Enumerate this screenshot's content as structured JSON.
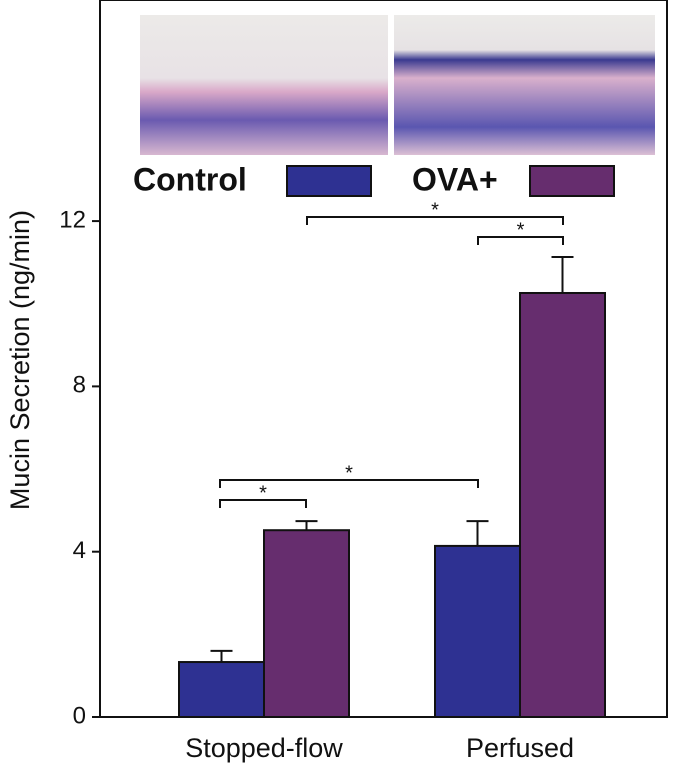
{
  "chart_data": {
    "type": "bar",
    "y_label": "Mucin Secretion (ng/min)",
    "categories": [
      "Stopped-flow",
      "Perfused"
    ],
    "series": [
      {
        "name": "Control",
        "color": "#2e3192",
        "values": [
          1.33,
          4.14
        ],
        "errors": [
          0.27,
          0.6
        ]
      },
      {
        "name": "OVA+",
        "color": "#662d6e",
        "values": [
          4.52,
          10.26
        ],
        "errors": [
          0.22,
          0.87
        ]
      }
    ],
    "ylim": [
      0,
      17.35
    ],
    "yticks": [
      0,
      4,
      8,
      12
    ],
    "annotations": [
      "*",
      "*",
      "*",
      "*"
    ]
  }
}
